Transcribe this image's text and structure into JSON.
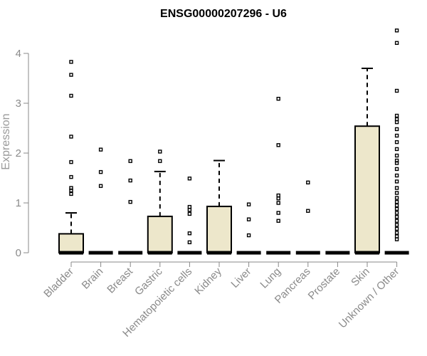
{
  "chart_data": {
    "type": "box",
    "title": "ENSG00000207296 - U6",
    "xlabel": "",
    "ylabel": "Expression",
    "ylim": [
      0,
      4.5
    ],
    "y_ticks": [
      0,
      1,
      2,
      3,
      4
    ],
    "grid": false,
    "colors": {
      "box_fill": "#ede7cb",
      "stroke": "#000000",
      "axis": "#888888",
      "axis_text": "#8a8a8a"
    },
    "categories": [
      "Bladder",
      "Brain",
      "Breast",
      "Gastric",
      "Hematopoietic cells",
      "Kidney",
      "Liver",
      "Lung",
      "Pancreas",
      "Prostate",
      "Skin",
      "Unknown / Other"
    ],
    "boxes": [
      {
        "category": "Bladder",
        "min": 0,
        "q1": 0,
        "median": 0,
        "q3": 0.38,
        "max": 0.8,
        "outliers": [
          3.83,
          3.57,
          3.15,
          2.33,
          1.82,
          1.52,
          1.3,
          1.25,
          1.18
        ]
      },
      {
        "category": "Brain",
        "min": 0,
        "q1": 0,
        "median": 0,
        "q3": 0,
        "max": 0,
        "outliers": [
          2.07,
          1.62,
          1.34
        ]
      },
      {
        "category": "Breast",
        "min": 0,
        "q1": 0,
        "median": 0,
        "q3": 0,
        "max": 0,
        "outliers": [
          1.84,
          1.45,
          1.02
        ]
      },
      {
        "category": "Gastric",
        "min": 0,
        "q1": 0,
        "median": 0,
        "q3": 0.73,
        "max": 1.63,
        "outliers": [
          2.03,
          1.84
        ]
      },
      {
        "category": "Hematopoietic cells",
        "min": 0,
        "q1": 0,
        "median": 0,
        "q3": 0,
        "max": 0,
        "outliers": [
          1.49,
          0.92,
          0.86,
          0.78,
          0.39,
          0.21
        ]
      },
      {
        "category": "Kidney",
        "min": 0,
        "q1": 0,
        "median": 0,
        "q3": 0.93,
        "max": 1.85,
        "outliers": []
      },
      {
        "category": "Liver",
        "min": 0,
        "q1": 0,
        "median": 0,
        "q3": 0,
        "max": 0,
        "outliers": [
          0.97,
          0.67,
          0.35
        ]
      },
      {
        "category": "Lung",
        "min": 0,
        "q1": 0,
        "median": 0,
        "q3": 0,
        "max": 0,
        "outliers": [
          3.09,
          2.16,
          1.15,
          1.09,
          1.0,
          0.8,
          0.64
        ]
      },
      {
        "category": "Pancreas",
        "min": 0,
        "q1": 0,
        "median": 0,
        "q3": 0,
        "max": 0,
        "outliers": [
          1.41,
          0.84
        ]
      },
      {
        "category": "Prostate",
        "min": 0,
        "q1": 0,
        "median": 0,
        "q3": 0,
        "max": 0,
        "outliers": []
      },
      {
        "category": "Skin",
        "min": 0,
        "q1": 0,
        "median": 0,
        "q3": 2.54,
        "max": 3.7,
        "outliers": []
      },
      {
        "category": "Unknown / Other",
        "min": 0,
        "q1": 0,
        "median": 0,
        "q3": 0,
        "max": 0,
        "outliers": [
          4.46,
          4.21,
          3.25,
          2.75,
          2.68,
          2.62,
          2.48,
          2.35,
          2.22,
          2.08,
          1.95,
          1.85,
          1.8,
          1.68,
          1.55,
          1.43,
          1.3,
          1.2,
          1.1,
          1.02,
          0.95,
          0.88,
          0.8,
          0.72,
          0.64,
          0.56,
          0.48,
          0.4,
          0.33,
          0.27
        ]
      }
    ]
  }
}
